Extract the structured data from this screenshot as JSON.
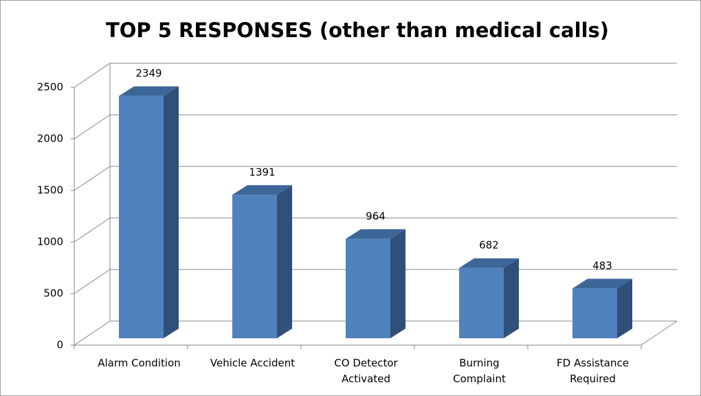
{
  "chart_data": {
    "type": "bar3d",
    "title": "TOP 5 RESPONSES (other than medical calls)",
    "categories": [
      [
        "Alarm Condition"
      ],
      [
        "Vehicle Accident"
      ],
      [
        "CO Detector",
        "Activated"
      ],
      [
        "Burning",
        "Complaint"
      ],
      [
        "FD Assistance",
        "Required"
      ]
    ],
    "values": [
      2349,
      1391,
      964,
      682,
      483
    ],
    "color": "#4f81bd",
    "side_color": "#2f5079",
    "top_color": "#3d6698",
    "ylim": [
      0,
      2500
    ],
    "yticks": [
      0,
      500,
      1000,
      1500,
      2000,
      2500
    ],
    "grid": true
  }
}
